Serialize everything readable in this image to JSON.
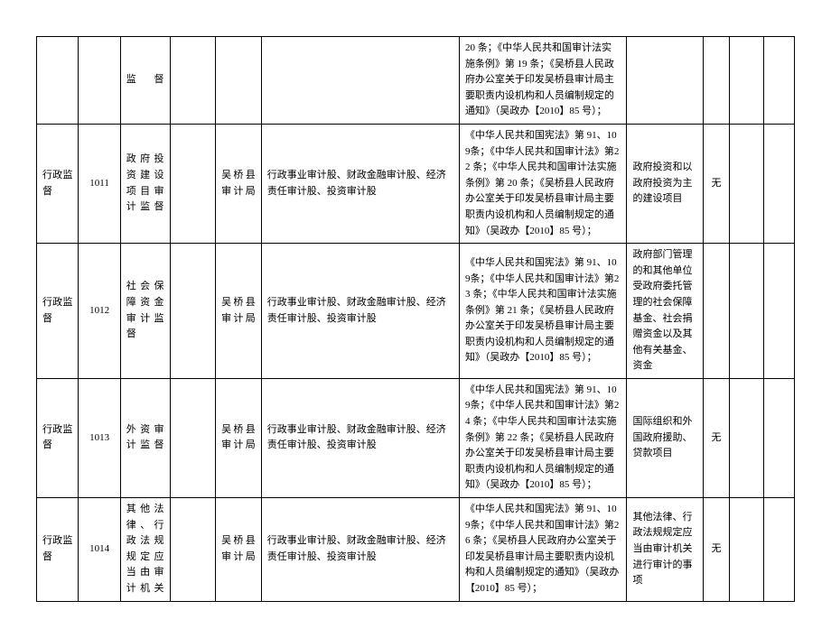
{
  "table": {
    "columns_count": 11,
    "border_color": "#000000",
    "background_color": "#ffffff",
    "font_size": 11,
    "rows": [
      {
        "c1": "",
        "c2": "",
        "c3": "监督",
        "c4": "",
        "c5": "",
        "c6": "",
        "c7": "20 条；《中华人民共和国审计法实施条例》第 19 条；《吴桥县人民政府办公室关于印发吴桥县审计局主要职责内设机构和人员编制规定的通知》（吴政办【2010】85 号）；",
        "c8": "",
        "c9": "",
        "c10": "",
        "c11": ""
      },
      {
        "c1": "行政监督",
        "c2": "1011",
        "c3": "政府投资建设项目审计监督",
        "c4": "",
        "c5": "吴桥县审计局",
        "c6": "行政事业审计股、财政金融审计股、经济责任审计股、投资审计股",
        "c7": "《中华人民共和国宪法》第 91、109条；《中华人民共和国审计法》第22 条；《中华人民共和国审计法实施条例》第 20 条；《吴桥县人民政府办公室关于印发吴桥县审计局主要职责内设机构和人员编制规定的通知》（吴政办【2010】85 号）；",
        "c8": "政府投资和以政府投资为主的建设项目",
        "c9": "无",
        "c10": "",
        "c11": ""
      },
      {
        "c1": "行政监督",
        "c2": "1012",
        "c3": "社会保障资金审计监督",
        "c4": "",
        "c5": "吴桥县审计局",
        "c6": "行政事业审计股、财政金融审计股、经济责任审计股、投资审计股",
        "c7": "《中华人民共和国宪法》第 91、109条；《中华人民共和国审计法》第23 条；《中华人民共和国审计法实施条例》第 21 条；《吴桥县人民政府办公室关于印发吴桥县审计局主要职责内设机构和人员编制规定的通知》（吴政办【2010】85 号）；",
        "c8": "政府部门管理的和其他单位受政府委托管理的社会保障基金、社会捐赠资金以及其他有关基金、资金",
        "c9": "",
        "c10": "",
        "c11": ""
      },
      {
        "c1": "行政监督",
        "c2": "1013",
        "c3": "外资审计监督",
        "c4": "",
        "c5": "吴桥县审计局",
        "c6": "行政事业审计股、财政金融审计股、经济责任审计股、投资审计股",
        "c7": "《中华人民共和国宪法》第 91、109条；《中华人民共和国审计法》第24 条；《中华人民共和国审计法实施条例》第 22 条；《吴桥县人民政府办公室关于印发吴桥县审计局主要职责内设机构和人员编制规定的通知》（吴政办【2010】85 号）；",
        "c8": "国际组织和外国政府援助、贷款项目",
        "c9": "无",
        "c10": "",
        "c11": ""
      },
      {
        "c1": "行政监督",
        "c2": "1014",
        "c3": "其他法律、行政法规规定应当由审计机关",
        "c4": "",
        "c5": "吴桥县审计局",
        "c6": "行政事业审计股、财政金融审计股、经济责任审计股、投资审计股",
        "c7": "《中华人民共和国宪法》第 91、109条；《中华人民共和国审计法》第26 条；《吴桥县人民政府办公室关于印发吴桥县审计局主要职责内设机构和人员编制规定的通知》（吴政办【2010】85 号）；",
        "c8": "其他法律、行政法规规定应当由审计机关进行审计的事项",
        "c9": "无",
        "c10": "",
        "c11": ""
      }
    ]
  }
}
